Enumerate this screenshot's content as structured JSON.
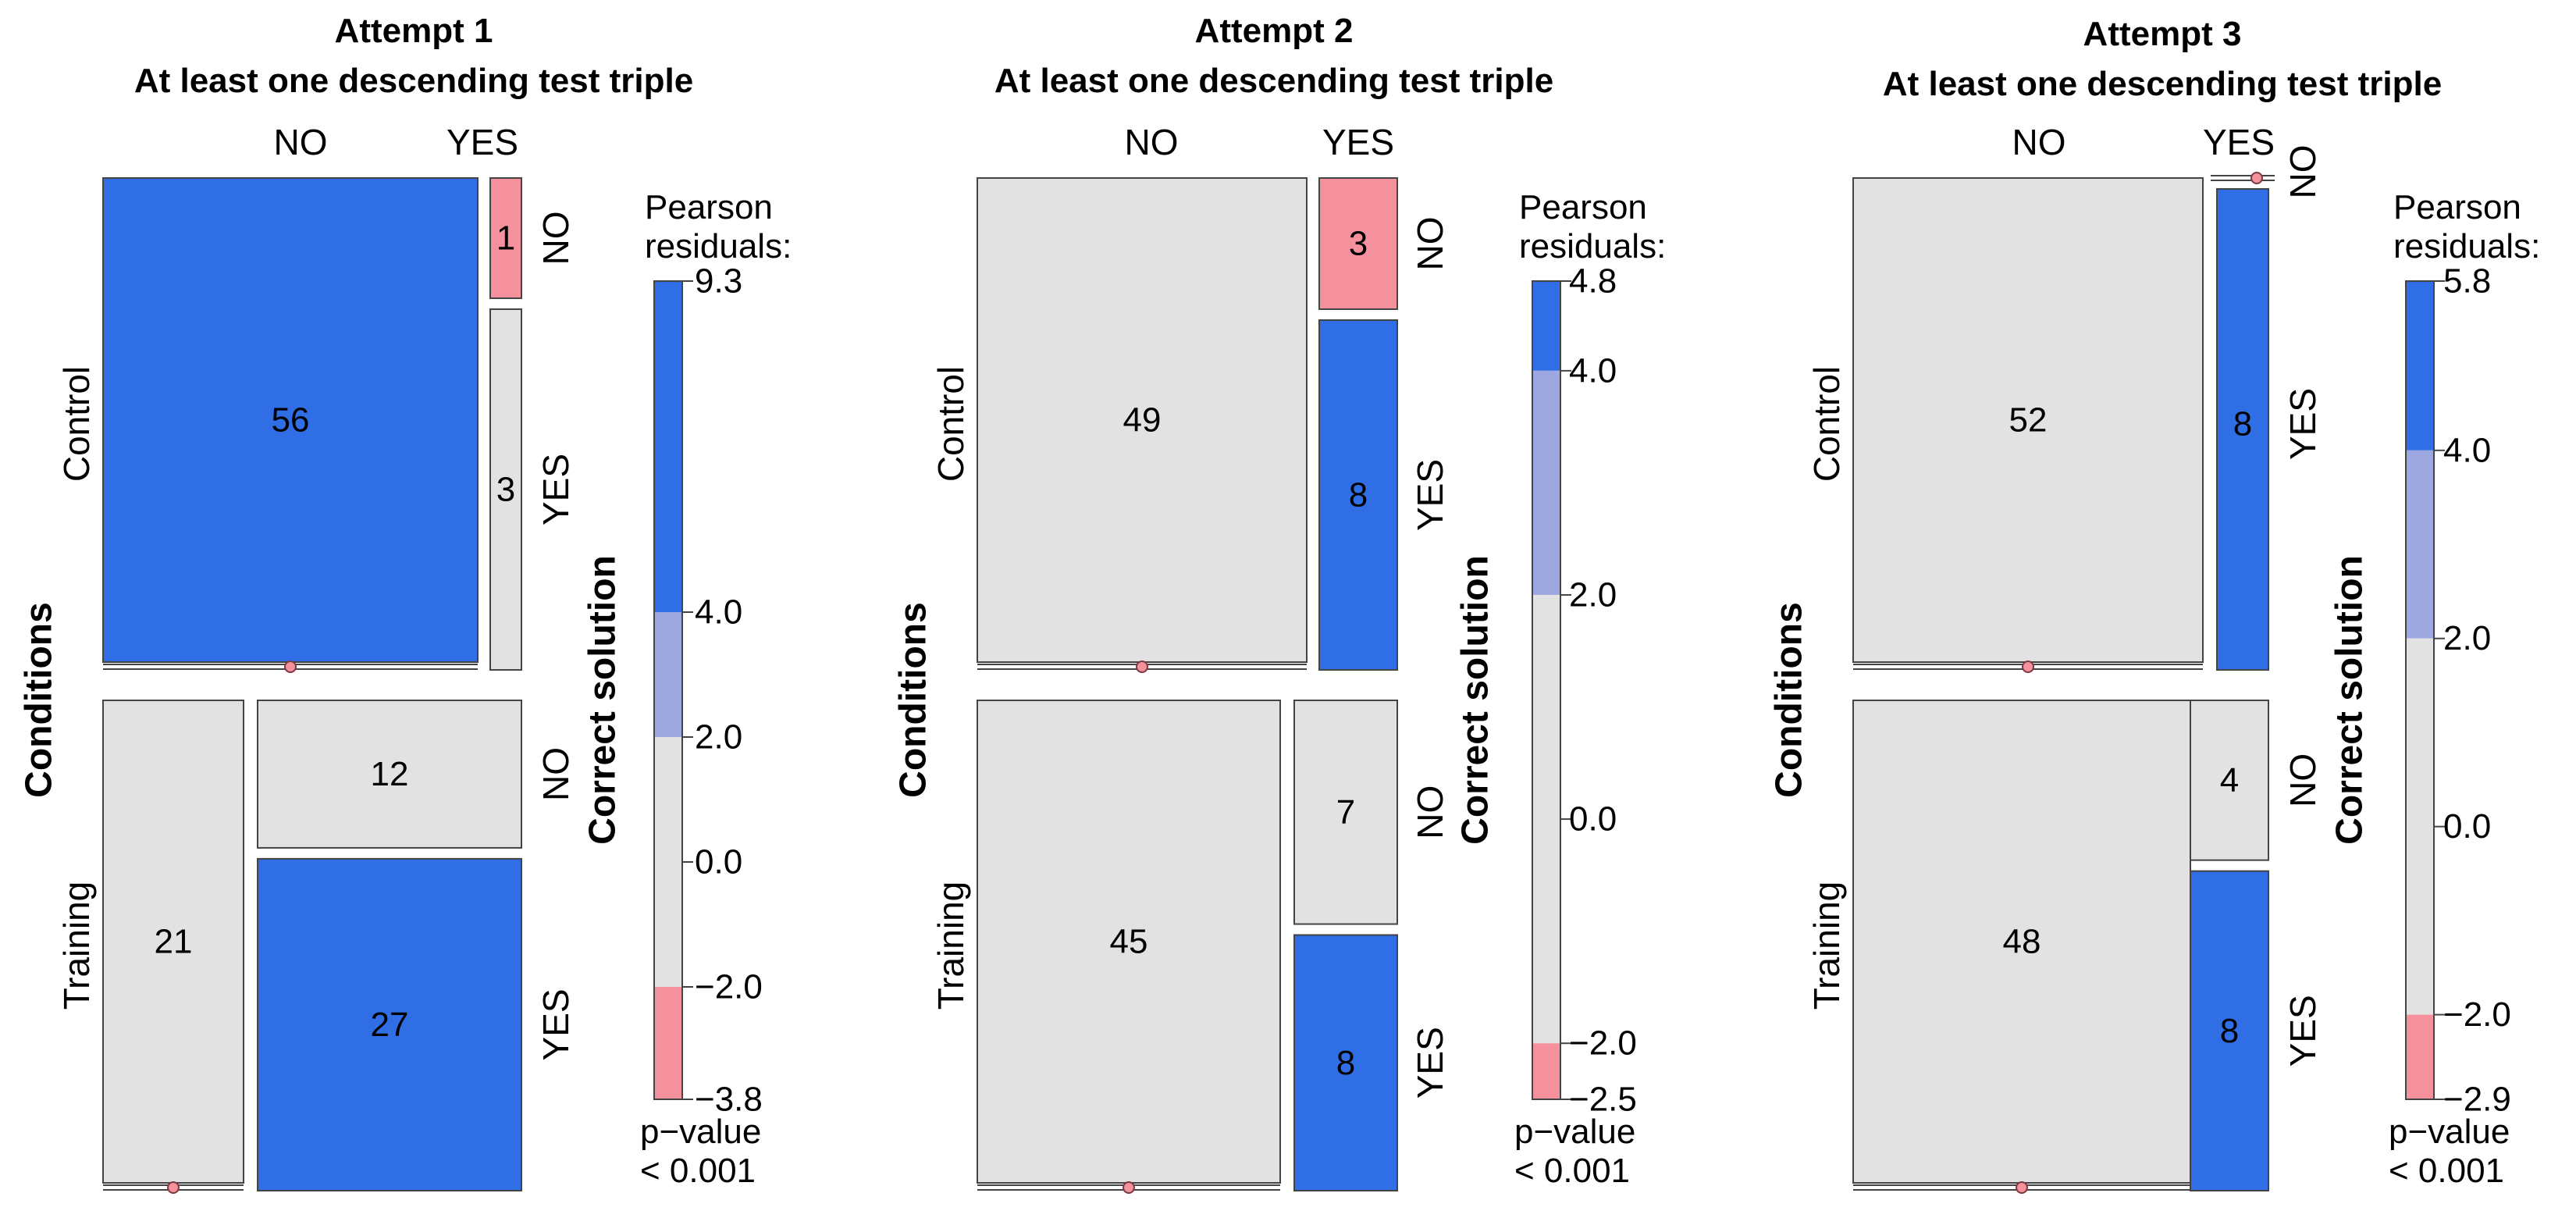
{
  "chart_data": [
    {
      "type": "mosaic",
      "title_line1": "Attempt 1",
      "title_line2": "At least one descending test triple",
      "col_labels": [
        "NO",
        "YES"
      ],
      "row_var": "Conditions",
      "row_labels": [
        "Control",
        "Training"
      ],
      "inner_var": "Correct solution",
      "inner_labels": [
        "NO",
        "YES"
      ],
      "counts": {
        "Control": {
          "NO": {
            "NO": 56,
            "YES": 0
          },
          "YES": {
            "NO": 1,
            "YES": 3
          }
        },
        "Training": {
          "NO": {
            "NO": 21,
            "YES": 0
          },
          "YES": {
            "NO": 12,
            "YES": 27
          }
        }
      },
      "cell_labels": {
        "Control": {
          "NO": {
            "NO": "56",
            "YES": ""
          },
          "YES": {
            "NO": "1",
            "YES": "3"
          }
        },
        "Training": {
          "NO": {
            "NO": "21",
            "YES": ""
          },
          "YES": {
            "NO": "12",
            "YES": "27"
          }
        }
      },
      "shading": {
        "Control": {
          "NO": {
            "NO": "blue",
            "YES": "zero"
          },
          "YES": {
            "NO": "red",
            "YES": "grey"
          }
        },
        "Training": {
          "NO": {
            "NO": "grey",
            "YES": "zero"
          },
          "YES": {
            "NO": "grey",
            "YES": "blue"
          }
        }
      },
      "legend": {
        "title_line1": "Pearson",
        "title_line2": "residuals:",
        "max": 9.3,
        "min": -3.8,
        "tick_values": [
          9.3,
          4.0,
          2.0,
          0.0,
          -2.0,
          -3.8
        ],
        "tick_labels": [
          "9.3",
          "4.0",
          "2.0",
          "0.0",
          "−2.0",
          "−3.8"
        ],
        "pvalue_line1": "p−value",
        "pvalue_line2": "< 0.001"
      }
    },
    {
      "type": "mosaic",
      "title_line1": "Attempt 2",
      "title_line2": "At least one descending test triple",
      "col_labels": [
        "NO",
        "YES"
      ],
      "row_var": "Conditions",
      "row_labels": [
        "Control",
        "Training"
      ],
      "inner_var": "Correct solution",
      "inner_labels": [
        "NO",
        "YES"
      ],
      "counts": {
        "Control": {
          "NO": {
            "NO": 49,
            "YES": 0
          },
          "YES": {
            "NO": 3,
            "YES": 8
          }
        },
        "Training": {
          "NO": {
            "NO": 45,
            "YES": 0
          },
          "YES": {
            "NO": 7,
            "YES": 8
          }
        }
      },
      "cell_labels": {
        "Control": {
          "NO": {
            "NO": "49",
            "YES": ""
          },
          "YES": {
            "NO": "3",
            "YES": "8"
          }
        },
        "Training": {
          "NO": {
            "NO": "45",
            "YES": ""
          },
          "YES": {
            "NO": "7",
            "YES": "8"
          }
        }
      },
      "shading": {
        "Control": {
          "NO": {
            "NO": "grey",
            "YES": "zero"
          },
          "YES": {
            "NO": "red",
            "YES": "blue"
          }
        },
        "Training": {
          "NO": {
            "NO": "grey",
            "YES": "zero"
          },
          "YES": {
            "NO": "grey",
            "YES": "blue"
          }
        }
      },
      "legend": {
        "title_line1": "Pearson",
        "title_line2": "residuals:",
        "max": 4.8,
        "min": -2.5,
        "tick_values": [
          4.8,
          4.0,
          2.0,
          0.0,
          -2.0,
          -2.5
        ],
        "tick_labels": [
          "4.8",
          "4.0",
          "2.0",
          "0.0",
          "−2.0",
          "−2.5"
        ],
        "pvalue_line1": "p−value",
        "pvalue_line2": "< 0.001"
      }
    },
    {
      "type": "mosaic",
      "title_line1": "Attempt 3",
      "title_line2": "At least one descending test triple",
      "col_labels": [
        "NO",
        "YES"
      ],
      "row_var": "Conditions",
      "row_labels": [
        "Control",
        "Training"
      ],
      "inner_var": "Correct solution",
      "inner_labels": [
        "NO",
        "YES"
      ],
      "counts": {
        "Control": {
          "NO": {
            "NO": 52,
            "YES": 0
          },
          "YES": {
            "NO": 0,
            "YES": 8
          }
        },
        "Training": {
          "NO": {
            "NO": 48,
            "YES": 0
          },
          "YES": {
            "NO": 4,
            "YES": 8
          }
        }
      },
      "cell_labels": {
        "Control": {
          "NO": {
            "NO": "52",
            "YES": ""
          },
          "YES": {
            "NO": "",
            "YES": "8"
          }
        },
        "Training": {
          "NO": {
            "NO": "48",
            "YES": ""
          },
          "YES": {
            "NO": "4",
            "YES": "8"
          }
        }
      },
      "shading": {
        "Control": {
          "NO": {
            "NO": "grey",
            "YES": "zero"
          },
          "YES": {
            "NO": "zero",
            "YES": "blue"
          }
        },
        "Training": {
          "NO": {
            "NO": "grey",
            "YES": "zero"
          },
          "YES": {
            "NO": "grey",
            "YES": "blue"
          }
        }
      },
      "legend": {
        "title_line1": "Pearson",
        "title_line2": "residuals:",
        "max": 5.8,
        "min": -2.9,
        "tick_values": [
          5.8,
          4.0,
          2.0,
          0.0,
          -2.0,
          -2.9
        ],
        "tick_labels": [
          "5.8",
          "4.0",
          "2.0",
          "0.0",
          "−2.0",
          "−2.9"
        ],
        "pvalue_line1": "p−value",
        "pvalue_line2": "< 0.001"
      }
    }
  ],
  "colors": {
    "strong_positive": "#2f6ee4",
    "mild_positive": "#9da8e0",
    "neutral": "#e2e2e2",
    "mild_negative": "#f4919c",
    "strong_negative": "#f4919c",
    "zero_marker": "#f4919c",
    "border": "#444444"
  }
}
